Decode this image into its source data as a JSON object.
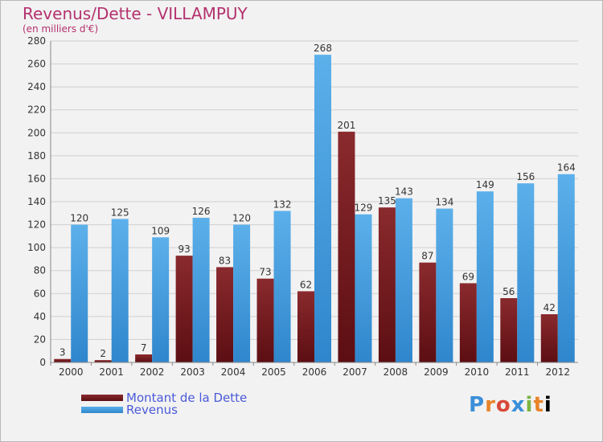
{
  "chart_data": {
    "type": "bar",
    "title": "Revenus/Dette - VILLAMPUY",
    "subtitle": "(en milliers d'€)",
    "categories": [
      "2000",
      "2001",
      "2002",
      "2003",
      "2004",
      "2005",
      "2006",
      "2007",
      "2008",
      "2009",
      "2010",
      "2011",
      "2012"
    ],
    "series": [
      {
        "name": "Montant de la Dette",
        "values": [
          3,
          2,
          7,
          93,
          83,
          73,
          62,
          201,
          135,
          87,
          69,
          56,
          42
        ],
        "color": "#7a1a1e"
      },
      {
        "name": "Revenus",
        "values": [
          120,
          125,
          109,
          126,
          120,
          132,
          268,
          129,
          143,
          134,
          149,
          156,
          164
        ],
        "color": "#4fa3e0"
      }
    ],
    "ylim": [
      0,
      280
    ],
    "yticks": [
      0,
      20,
      40,
      60,
      80,
      100,
      120,
      140,
      160,
      180,
      200,
      220,
      240,
      260,
      280
    ],
    "grid": true,
    "legend": "bottom-left"
  },
  "legend": {
    "debt_label": "Montant de la Dette",
    "revenue_label": "Revenus"
  },
  "logo": {
    "letters": [
      "P",
      "r",
      "o",
      "x",
      "i",
      "t",
      "i"
    ]
  }
}
